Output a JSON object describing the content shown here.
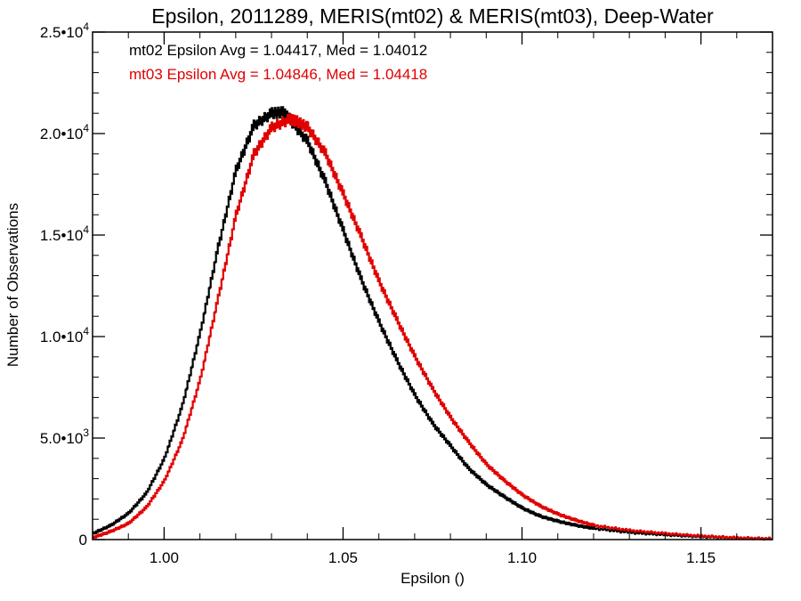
{
  "chart_data": {
    "type": "line",
    "title": "Epsilon, 2011289, MERIS(mt02) & MERIS(mt03), Deep-Water",
    "xlabel": "Epsilon ()",
    "ylabel": "Number of Observations",
    "xlim": [
      0.98,
      1.17
    ],
    "ylim": [
      0,
      25000
    ],
    "x_ticks": [
      {
        "value": 1.0,
        "label": "1.00"
      },
      {
        "value": 1.05,
        "label": "1.05"
      },
      {
        "value": 1.1,
        "label": "1.10"
      },
      {
        "value": 1.15,
        "label": "1.15"
      }
    ],
    "y_ticks": [
      {
        "value": 0,
        "mant": "0",
        "exp": ""
      },
      {
        "value": 5000,
        "mant": "5.0•10",
        "exp": "3"
      },
      {
        "value": 10000,
        "mant": "1.0•10",
        "exp": "4"
      },
      {
        "value": 15000,
        "mant": "1.5•10",
        "exp": "4"
      },
      {
        "value": 20000,
        "mant": "2.0•10",
        "exp": "4"
      },
      {
        "value": 25000,
        "mant": "2.5•10",
        "exp": "4"
      }
    ],
    "grid": false,
    "annotations": [
      {
        "text": "mt02 Epsilon Avg = 1.04417, Med = 1.04012",
        "color": "#000000"
      },
      {
        "text": "mt03 Epsilon Avg = 1.04846, Med = 1.04418",
        "color": "#e00000"
      }
    ],
    "series": [
      {
        "color": "#000000",
        "x": [
          0.98,
          0.985,
          0.99,
          0.995,
          1.0,
          1.005,
          1.01,
          1.015,
          1.02,
          1.025,
          1.03,
          1.033,
          1.035,
          1.04,
          1.045,
          1.05,
          1.055,
          1.06,
          1.065,
          1.07,
          1.075,
          1.08,
          1.085,
          1.09,
          1.095,
          1.1,
          1.105,
          1.11,
          1.115,
          1.12,
          1.13,
          1.14,
          1.15,
          1.16,
          1.17
        ],
        "y": [
          300,
          700,
          1300,
          2300,
          4000,
          6600,
          10200,
          14400,
          18200,
          20400,
          21000,
          21050,
          20700,
          19600,
          17600,
          15200,
          12800,
          10700,
          8800,
          7100,
          5700,
          4600,
          3500,
          2700,
          2100,
          1550,
          1150,
          900,
          700,
          550,
          350,
          230,
          140,
          80,
          40
        ]
      },
      {
        "color": "#e00000",
        "x": [
          0.98,
          0.985,
          0.99,
          0.995,
          1.0,
          1.005,
          1.01,
          1.015,
          1.02,
          1.025,
          1.03,
          1.035,
          1.037,
          1.04,
          1.045,
          1.05,
          1.055,
          1.06,
          1.065,
          1.07,
          1.075,
          1.08,
          1.085,
          1.09,
          1.095,
          1.1,
          1.105,
          1.11,
          1.115,
          1.12,
          1.13,
          1.14,
          1.15,
          1.16,
          1.17
        ],
        "y": [
          100,
          400,
          800,
          1600,
          2900,
          4900,
          7900,
          11900,
          16000,
          19000,
          20300,
          20700,
          20600,
          20300,
          19000,
          17000,
          14900,
          12700,
          10800,
          9000,
          7400,
          6000,
          4800,
          3700,
          2900,
          2200,
          1650,
          1250,
          950,
          700,
          450,
          300,
          180,
          90,
          40
        ]
      }
    ]
  }
}
